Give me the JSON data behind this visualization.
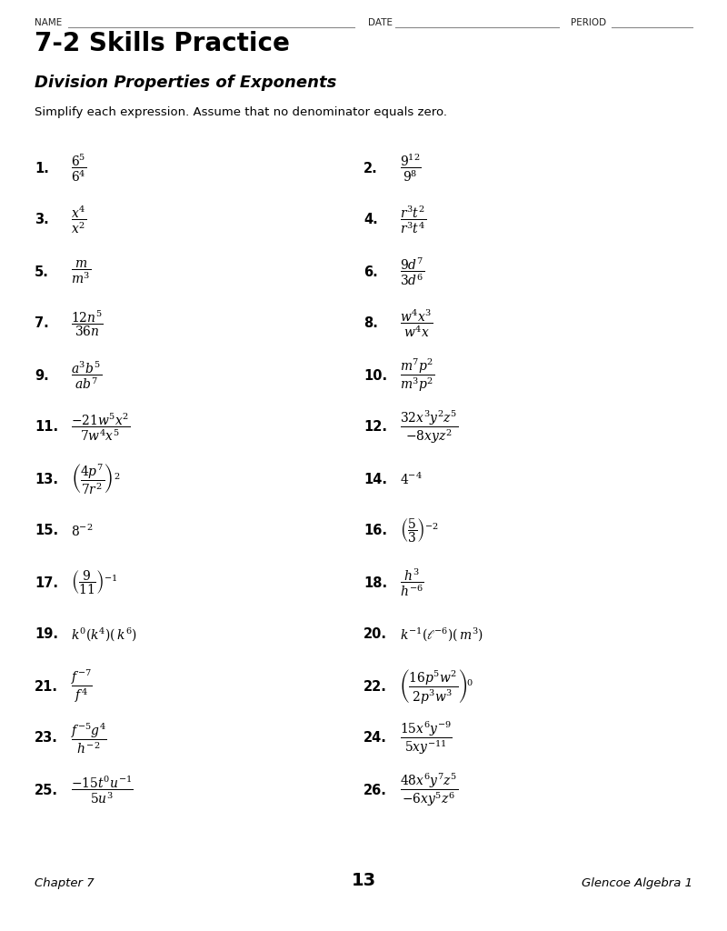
{
  "title1": "7-2 Skills Practice",
  "title2": "Division Properties of Exponents",
  "instruction": "Simplify each expression. Assume that no denominator equals zero.",
  "footer_left": "Chapter 7",
  "footer_center": "13",
  "footer_right": "Glencoe Algebra 1",
  "bg_color": "#ffffff",
  "text_color": "#000000",
  "name_label": "NAME",
  "date_label": "DATE",
  "period_label": "PERIOD",
  "problems": [
    {
      "num": "1.",
      "expr": "$\\dfrac{6^5}{6^4}$",
      "col": 0,
      "row": 0
    },
    {
      "num": "2.",
      "expr": "$\\dfrac{9^{12}}{9^8}$",
      "col": 1,
      "row": 0
    },
    {
      "num": "3.",
      "expr": "$\\dfrac{x^4}{x^2}$",
      "col": 0,
      "row": 1
    },
    {
      "num": "4.",
      "expr": "$\\dfrac{r^3t^2}{r^3t^4}$",
      "col": 1,
      "row": 1
    },
    {
      "num": "5.",
      "expr": "$\\dfrac{m}{m^3}$",
      "col": 0,
      "row": 2
    },
    {
      "num": "6.",
      "expr": "$\\dfrac{9d^7}{3d^6}$",
      "col": 1,
      "row": 2
    },
    {
      "num": "7.",
      "expr": "$\\dfrac{12n^5}{36n}$",
      "col": 0,
      "row": 3
    },
    {
      "num": "8.",
      "expr": "$\\dfrac{w^4x^3}{w^4x}$",
      "col": 1,
      "row": 3
    },
    {
      "num": "9.",
      "expr": "$\\dfrac{a^3b^5}{ab^7}$",
      "col": 0,
      "row": 4
    },
    {
      "num": "10.",
      "expr": "$\\dfrac{m^7p^2}{m^3p^2}$",
      "col": 1,
      "row": 4
    },
    {
      "num": "11.",
      "expr": "$\\dfrac{-21w^5x^2}{7w^4x^5}$",
      "col": 0,
      "row": 5
    },
    {
      "num": "12.",
      "expr": "$\\dfrac{32x^3y^2z^5}{-8xyz^2}$",
      "col": 1,
      "row": 5
    },
    {
      "num": "13.",
      "expr": "$\\left(\\dfrac{4p^7}{7r^2}\\right)^2$",
      "col": 0,
      "row": 6
    },
    {
      "num": "14.",
      "expr": "$4^{-4}$",
      "col": 1,
      "row": 6
    },
    {
      "num": "15.",
      "expr": "$8^{-2}$",
      "col": 0,
      "row": 7
    },
    {
      "num": "16.",
      "expr": "$\\left(\\dfrac{5}{3}\\right)^{-2}$",
      "col": 1,
      "row": 7
    },
    {
      "num": "17.",
      "expr": "$\\left(\\dfrac{9}{11}\\right)^{-1}$",
      "col": 0,
      "row": 8
    },
    {
      "num": "18.",
      "expr": "$\\dfrac{h^3}{h^{-6}}$",
      "col": 1,
      "row": 8
    },
    {
      "num": "19.",
      "expr": "$k^0(k^4)(\\, k^6)$",
      "col": 0,
      "row": 9
    },
    {
      "num": "20.",
      "expr": "$k^{-1}(\\ell^{-6})(\\, m^3)$",
      "col": 1,
      "row": 9
    },
    {
      "num": "21.",
      "expr": "$\\dfrac{f^{-7}}{f^4}$",
      "col": 0,
      "row": 10
    },
    {
      "num": "22.",
      "expr": "$\\left(\\dfrac{16p^5w^2}{2p^3w^3}\\right)^0$",
      "col": 1,
      "row": 10
    },
    {
      "num": "23.",
      "expr": "$\\dfrac{f^{-5}g^4}{h^{-2}}$",
      "col": 0,
      "row": 11
    },
    {
      "num": "24.",
      "expr": "$\\dfrac{15x^6y^{-9}}{5xy^{-11}}$",
      "col": 1,
      "row": 11
    },
    {
      "num": "25.",
      "expr": "$\\dfrac{-15t^0u^{-1}}{5u^3}$",
      "col": 0,
      "row": 12
    },
    {
      "num": "26.",
      "expr": "$\\dfrac{48x^6y^7z^5}{-6xy^5z^6}$",
      "col": 1,
      "row": 12
    }
  ]
}
